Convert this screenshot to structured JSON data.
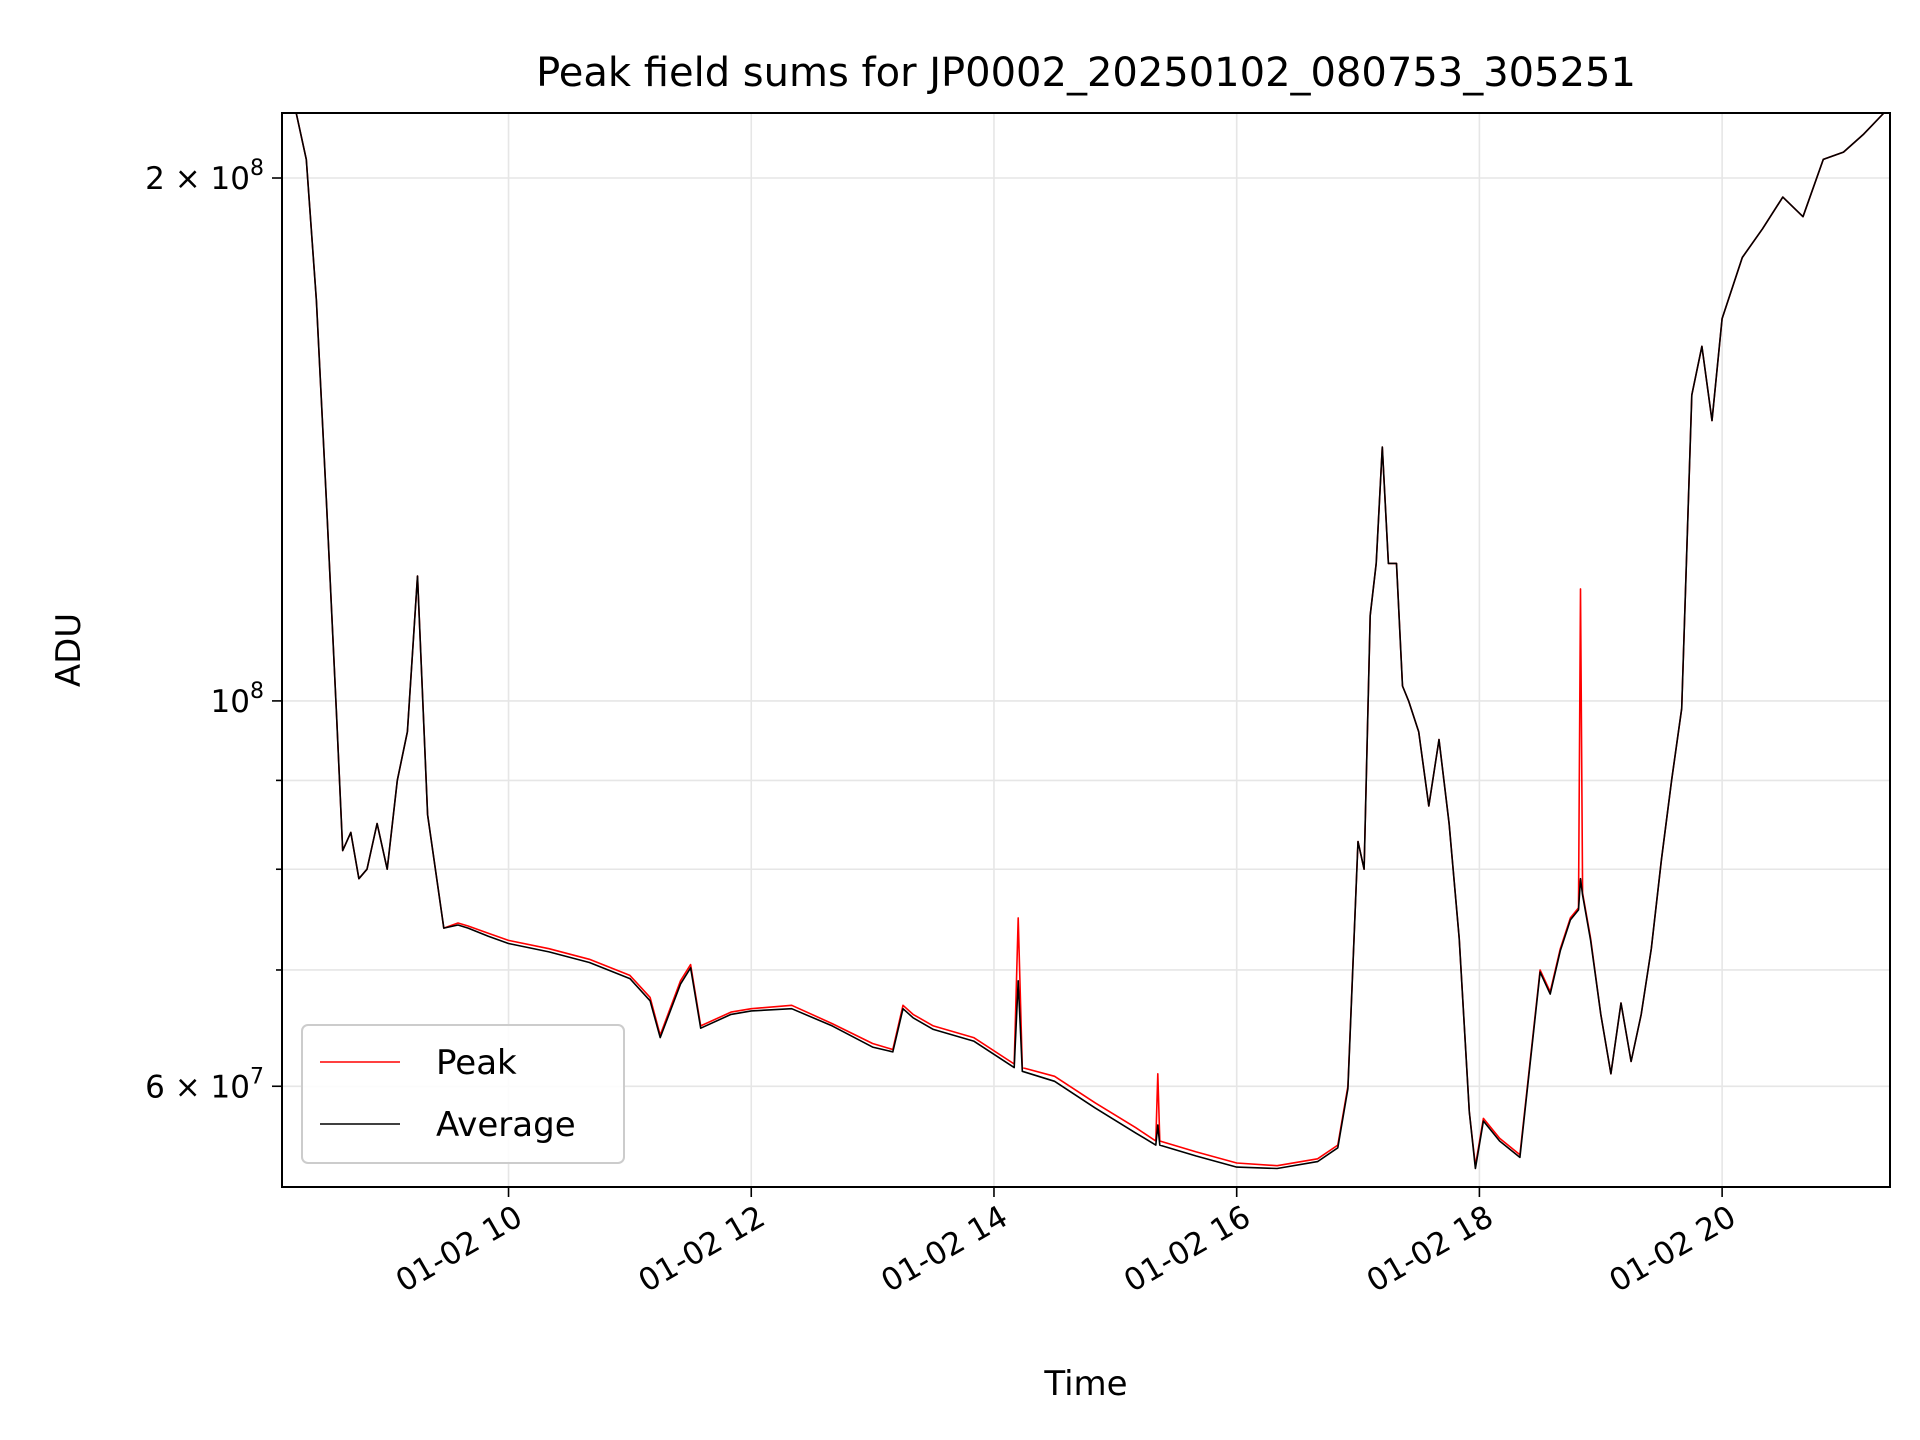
{
  "chart_data": {
    "type": "line",
    "title": "Peak field sums for JP0002_20250102_080753_305251",
    "xlabel": "Time",
    "ylabel": "ADU",
    "yscale": "log",
    "xlim": [
      "2025-01-02 08:08",
      "2025-01-02 21:23"
    ],
    "ylim": [
      52500000,
      218000000
    ],
    "grid": true,
    "legend_position": "lower-left",
    "x_ticks": [
      {
        "value": "2025-01-02 10:00",
        "label": "01-02 10"
      },
      {
        "value": "2025-01-02 12:00",
        "label": "01-02 12"
      },
      {
        "value": "2025-01-02 14:00",
        "label": "01-02 14"
      },
      {
        "value": "2025-01-02 16:00",
        "label": "01-02 16"
      },
      {
        "value": "2025-01-02 18:00",
        "label": "01-02 18"
      },
      {
        "value": "2025-01-02 20:00",
        "label": "01-02 20"
      }
    ],
    "y_ticks_major": [
      {
        "value": 60000000,
        "mantissa": "6",
        "exponent": "7"
      },
      {
        "value": 100000000,
        "mantissa": "",
        "exponent": "8"
      },
      {
        "value": 200000000,
        "mantissa": "2",
        "exponent": "8"
      }
    ],
    "y_ticks_minor": [
      70000000,
      80000000,
      90000000
    ],
    "series": [
      {
        "name": "Peak",
        "color": "#ff0000",
        "x": [
          "2025-01-02 08:08",
          "2025-01-02 08:15",
          "2025-01-02 08:20",
          "2025-01-02 08:25",
          "2025-01-02 08:30",
          "2025-01-02 08:35",
          "2025-01-02 08:38",
          "2025-01-02 08:42",
          "2025-01-02 08:46",
          "2025-01-02 08:50",
          "2025-01-02 08:55",
          "2025-01-02 09:00",
          "2025-01-02 09:05",
          "2025-01-02 09:10",
          "2025-01-02 09:15",
          "2025-01-02 09:20",
          "2025-01-02 09:28",
          "2025-01-02 09:35",
          "2025-01-02 09:40",
          "2025-01-02 09:50",
          "2025-01-02 10:00",
          "2025-01-02 10:20",
          "2025-01-02 10:40",
          "2025-01-02 11:00",
          "2025-01-02 11:10",
          "2025-01-02 11:15",
          "2025-01-02 11:25",
          "2025-01-02 11:30",
          "2025-01-02 11:35",
          "2025-01-02 11:50",
          "2025-01-02 12:00",
          "2025-01-02 12:20",
          "2025-01-02 12:40",
          "2025-01-02 13:00",
          "2025-01-02 13:10",
          "2025-01-02 13:15",
          "2025-01-02 13:20",
          "2025-01-02 13:30",
          "2025-01-02 13:50",
          "2025-01-02 14:10",
          "2025-01-02 14:12",
          "2025-01-02 14:14",
          "2025-01-02 14:30",
          "2025-01-02 14:50",
          "2025-01-02 15:10",
          "2025-01-02 15:20",
          "2025-01-02 15:21",
          "2025-01-02 15:22",
          "2025-01-02 15:40",
          "2025-01-02 16:00",
          "2025-01-02 16:20",
          "2025-01-02 16:40",
          "2025-01-02 16:50",
          "2025-01-02 16:55",
          "2025-01-02 17:00",
          "2025-01-02 17:03",
          "2025-01-02 17:06",
          "2025-01-02 17:09",
          "2025-01-02 17:12",
          "2025-01-02 17:15",
          "2025-01-02 17:19",
          "2025-01-02 17:22",
          "2025-01-02 17:25",
          "2025-01-02 17:30",
          "2025-01-02 17:35",
          "2025-01-02 17:40",
          "2025-01-02 17:45",
          "2025-01-02 17:50",
          "2025-01-02 17:55",
          "2025-01-02 17:58",
          "2025-01-02 18:02",
          "2025-01-02 18:10",
          "2025-01-02 18:20",
          "2025-01-02 18:30",
          "2025-01-02 18:35",
          "2025-01-02 18:40",
          "2025-01-02 18:45",
          "2025-01-02 18:49",
          "2025-01-02 18:50",
          "2025-01-02 18:51",
          "2025-01-02 18:55",
          "2025-01-02 19:00",
          "2025-01-02 19:05",
          "2025-01-02 19:10",
          "2025-01-02 19:15",
          "2025-01-02 19:20",
          "2025-01-02 19:25",
          "2025-01-02 19:30",
          "2025-01-02 19:35",
          "2025-01-02 19:40",
          "2025-01-02 19:45",
          "2025-01-02 19:50",
          "2025-01-02 19:55",
          "2025-01-02 20:00",
          "2025-01-02 20:10",
          "2025-01-02 20:20",
          "2025-01-02 20:30",
          "2025-01-02 20:40",
          "2025-01-02 20:50",
          "2025-01-02 21:00",
          "2025-01-02 21:10",
          "2025-01-02 21:20"
        ],
        "y": [
          220000000,
          218000000,
          205000000,
          170000000,
          130000000,
          98000000,
          82000000,
          84000000,
          79000000,
          80000000,
          85000000,
          80000000,
          90000000,
          96000000,
          118000000,
          86000000,
          74000000,
          74500000,
          74200000,
          73500000,
          72800000,
          72000000,
          71000000,
          69500000,
          67500000,
          64200000,
          69000000,
          70500000,
          65000000,
          66200000,
          66500000,
          66800000,
          65200000,
          63500000,
          63000000,
          66800000,
          66000000,
          65000000,
          64000000,
          61800000,
          75000000,
          61500000,
          60800000,
          58700000,
          56800000,
          55800000,
          61000000,
          55800000,
          55000000,
          54200000,
          54000000,
          54500000,
          55500000,
          60000000,
          83000000,
          80000000,
          112000000,
          120000000,
          140000000,
          120000000,
          120000000,
          102000000,
          100000000,
          96000000,
          87000000,
          95000000,
          85000000,
          73000000,
          58000000,
          54000000,
          57500000,
          56000000,
          54800000,
          70000000,
          68000000,
          72000000,
          75000000,
          76000000,
          116000000,
          77500000,
          73000000,
          66000000,
          61000000,
          67000000,
          62000000,
          66000000,
          72000000,
          81000000,
          90000000,
          99000000,
          150000000,
          160000000,
          145000000,
          166000000,
          180000000,
          187000000,
          195000000,
          190000000,
          205000000,
          207000000,
          212000000,
          218000000
        ]
      },
      {
        "name": "Average",
        "color": "#000000",
        "x": [
          "2025-01-02 08:08",
          "2025-01-02 08:15",
          "2025-01-02 08:20",
          "2025-01-02 08:25",
          "2025-01-02 08:30",
          "2025-01-02 08:35",
          "2025-01-02 08:38",
          "2025-01-02 08:42",
          "2025-01-02 08:46",
          "2025-01-02 08:50",
          "2025-01-02 08:55",
          "2025-01-02 09:00",
          "2025-01-02 09:05",
          "2025-01-02 09:10",
          "2025-01-02 09:15",
          "2025-01-02 09:20",
          "2025-01-02 09:28",
          "2025-01-02 09:35",
          "2025-01-02 09:40",
          "2025-01-02 09:50",
          "2025-01-02 10:00",
          "2025-01-02 10:20",
          "2025-01-02 10:40",
          "2025-01-02 11:00",
          "2025-01-02 11:10",
          "2025-01-02 11:15",
          "2025-01-02 11:25",
          "2025-01-02 11:30",
          "2025-01-02 11:35",
          "2025-01-02 11:50",
          "2025-01-02 12:00",
          "2025-01-02 12:20",
          "2025-01-02 12:40",
          "2025-01-02 13:00",
          "2025-01-02 13:10",
          "2025-01-02 13:15",
          "2025-01-02 13:20",
          "2025-01-02 13:30",
          "2025-01-02 13:50",
          "2025-01-02 14:10",
          "2025-01-02 14:12",
          "2025-01-02 14:14",
          "2025-01-02 14:30",
          "2025-01-02 14:50",
          "2025-01-02 15:10",
          "2025-01-02 15:20",
          "2025-01-02 15:21",
          "2025-01-02 15:22",
          "2025-01-02 15:40",
          "2025-01-02 16:00",
          "2025-01-02 16:20",
          "2025-01-02 16:40",
          "2025-01-02 16:50",
          "2025-01-02 16:55",
          "2025-01-02 17:00",
          "2025-01-02 17:03",
          "2025-01-02 17:06",
          "2025-01-02 17:09",
          "2025-01-02 17:12",
          "2025-01-02 17:15",
          "2025-01-02 17:19",
          "2025-01-02 17:22",
          "2025-01-02 17:25",
          "2025-01-02 17:30",
          "2025-01-02 17:35",
          "2025-01-02 17:40",
          "2025-01-02 17:45",
          "2025-01-02 17:50",
          "2025-01-02 17:55",
          "2025-01-02 17:58",
          "2025-01-02 18:02",
          "2025-01-02 18:10",
          "2025-01-02 18:20",
          "2025-01-02 18:30",
          "2025-01-02 18:35",
          "2025-01-02 18:40",
          "2025-01-02 18:45",
          "2025-01-02 18:49",
          "2025-01-02 18:50",
          "2025-01-02 18:51",
          "2025-01-02 18:55",
          "2025-01-02 19:00",
          "2025-01-02 19:05",
          "2025-01-02 19:10",
          "2025-01-02 19:15",
          "2025-01-02 19:20",
          "2025-01-02 19:25",
          "2025-01-02 19:30",
          "2025-01-02 19:35",
          "2025-01-02 19:40",
          "2025-01-02 19:45",
          "2025-01-02 19:50",
          "2025-01-02 19:55",
          "2025-01-02 20:00",
          "2025-01-02 20:10",
          "2025-01-02 20:20",
          "2025-01-02 20:30",
          "2025-01-02 20:40",
          "2025-01-02 20:50",
          "2025-01-02 21:00",
          "2025-01-02 21:10",
          "2025-01-02 21:20"
        ],
        "y": [
          220000000,
          218000000,
          205000000,
          170000000,
          130000000,
          98000000,
          82000000,
          84000000,
          79000000,
          80000000,
          85000000,
          80000000,
          90000000,
          96000000,
          118000000,
          86000000,
          74000000,
          74300000,
          74000000,
          73200000,
          72500000,
          71700000,
          70700000,
          69200000,
          67200000,
          64000000,
          68700000,
          70200000,
          64800000,
          66000000,
          66300000,
          66500000,
          65000000,
          63200000,
          62800000,
          66500000,
          65700000,
          64700000,
          63700000,
          61500000,
          69000000,
          61200000,
          60400000,
          58300000,
          56400000,
          55500000,
          57000000,
          55500000,
          54700000,
          53900000,
          53800000,
          54300000,
          55300000,
          59800000,
          83000000,
          80000000,
          112000000,
          120000000,
          140000000,
          120000000,
          120000000,
          102000000,
          100000000,
          96000000,
          87000000,
          95000000,
          85000000,
          73000000,
          58000000,
          53800000,
          57300000,
          55800000,
          54600000,
          69800000,
          67800000,
          71800000,
          74800000,
          75800000,
          79000000,
          77300000,
          72800000,
          66000000,
          61000000,
          67000000,
          62000000,
          66000000,
          72000000,
          81000000,
          90000000,
          99000000,
          150000000,
          160000000,
          145000000,
          166000000,
          180000000,
          187000000,
          195000000,
          190000000,
          205000000,
          207000000,
          212000000,
          218000000
        ]
      }
    ]
  }
}
